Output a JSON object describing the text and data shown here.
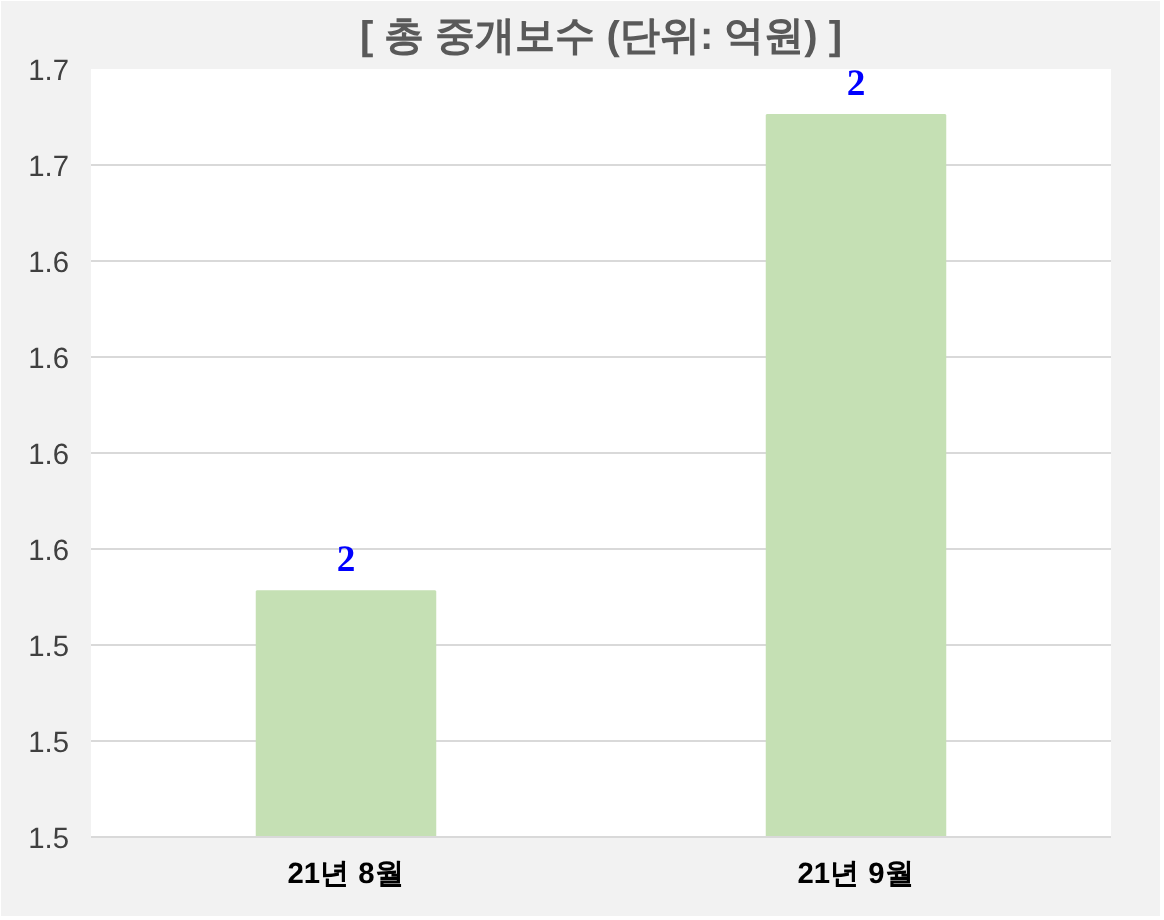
{
  "chart_data": {
    "type": "bar",
    "title": "[ 총 중개보수 (단위: 억원) ]",
    "categories": [
      "21년 8월",
      "21년 9월"
    ],
    "values": [
      1.564,
      1.688
    ],
    "value_labels": [
      "2",
      "2"
    ],
    "color": "#c5e0b4",
    "ylim": [
      1.5,
      1.7
    ],
    "yticks": [
      1.5,
      {
        "value": 1.525,
        "label": "1.5"
      },
      {
        "value": 1.55,
        "label": "1.5"
      },
      {
        "value": 1.575,
        "label": "1.6"
      },
      1.6,
      {
        "value": 1.625,
        "label": "1.6"
      },
      {
        "value": 1.65,
        "label": "1.6"
      },
      {
        "value": 1.675,
        "label": "1.7"
      },
      1.7
    ],
    "grid": "y"
  }
}
